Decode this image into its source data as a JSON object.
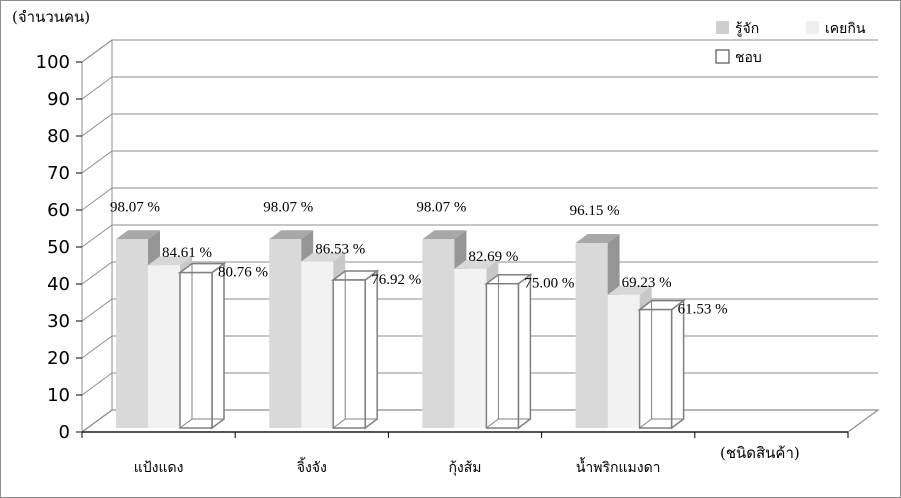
{
  "chart_data": {
    "type": "bar",
    "ylabel": "(จำนวนคน)",
    "xlabel": "(ชนิดสินค้า)",
    "ylim": [
      0,
      100
    ],
    "yticks": [
      0,
      10,
      20,
      30,
      40,
      50,
      60,
      70,
      80,
      90,
      100
    ],
    "grid": true,
    "legend_position": "top-right",
    "categories": [
      "แป้งแดง",
      "จิ้งจัง",
      "กุ้งส้ม",
      "น้ำพริกแมงดา"
    ],
    "series": [
      {
        "name": "รู้จัก",
        "style": "solid",
        "color": "#d9d9d9",
        "values": [
          51,
          51,
          51,
          50
        ],
        "labels": [
          "98.07 %",
          "98.07 %",
          "98.07 %",
          "96.15 %"
        ]
      },
      {
        "name": "เคยกิน",
        "style": "solid",
        "color": "#f2f2f2",
        "values": [
          44,
          45,
          43,
          36
        ],
        "labels": [
          "84.61 %",
          "86.53 %",
          "82.69 %",
          "69.23 %"
        ]
      },
      {
        "name": "ชอบ",
        "style": "outline",
        "color": "#7f7f7f",
        "values": [
          42,
          40,
          39,
          32
        ],
        "labels": [
          "80.76 %",
          "76.92 %",
          "75.00 %",
          "61.53 %"
        ]
      }
    ]
  }
}
